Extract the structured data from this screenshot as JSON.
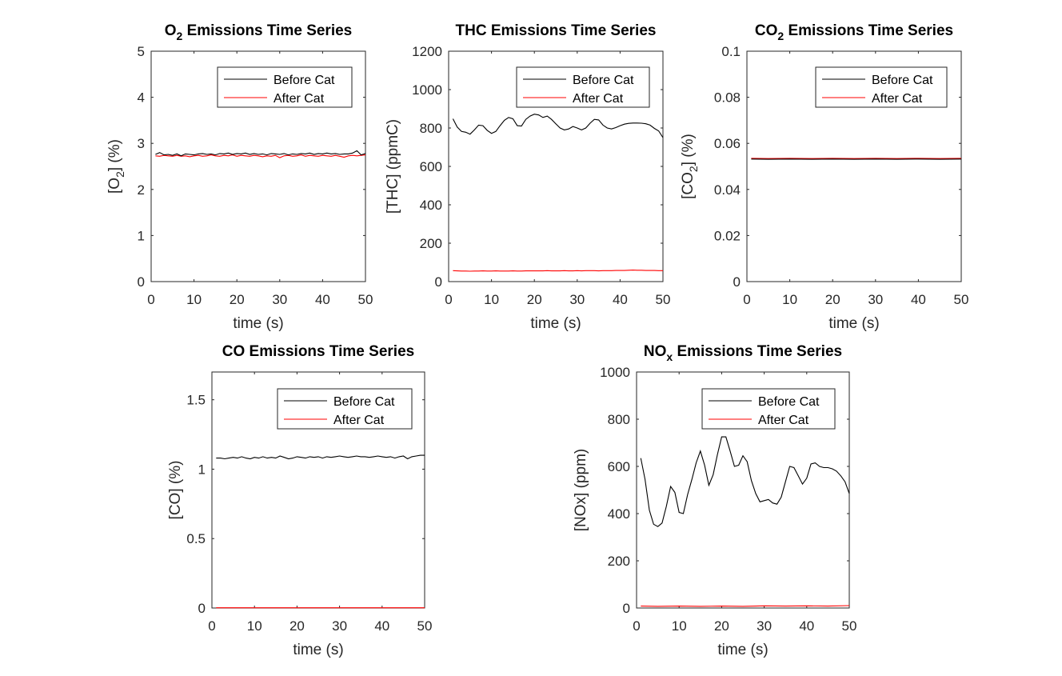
{
  "colors": {
    "before": "#000000",
    "after": "#ff0000",
    "axis": "#262626"
  },
  "chart_data": [
    {
      "type": "line",
      "title_main": "O",
      "title_sub": "2",
      "title_rest": " Emissions Time Series",
      "xlabel": "time (s)",
      "ylabel_pre": "[O",
      "ylabel_sub": "2",
      "ylabel_post": "] (%)",
      "xlim": [
        0,
        50
      ],
      "ylim": [
        0,
        5
      ],
      "xticks": [
        "0",
        "10",
        "20",
        "30",
        "40",
        "50"
      ],
      "yticks": [
        "0",
        "1",
        "2",
        "3",
        "4",
        "5"
      ],
      "legend": [
        "Before Cat",
        "After Cat"
      ],
      "legend_position": "top-right",
      "series": [
        {
          "name": "Before Cat",
          "x": [
            1,
            2,
            3,
            4,
            5,
            6,
            7,
            8,
            9,
            10,
            11,
            12,
            13,
            14,
            15,
            16,
            17,
            18,
            19,
            20,
            21,
            22,
            23,
            24,
            25,
            26,
            27,
            28,
            29,
            30,
            31,
            32,
            33,
            34,
            35,
            36,
            37,
            38,
            39,
            40,
            41,
            42,
            43,
            44,
            45,
            46,
            47,
            48,
            49,
            50
          ],
          "y": [
            2.76,
            2.8,
            2.75,
            2.76,
            2.74,
            2.77,
            2.73,
            2.77,
            2.76,
            2.75,
            2.77,
            2.78,
            2.76,
            2.77,
            2.75,
            2.78,
            2.77,
            2.79,
            2.76,
            2.78,
            2.77,
            2.79,
            2.76,
            2.78,
            2.76,
            2.77,
            2.75,
            2.78,
            2.77,
            2.76,
            2.78,
            2.75,
            2.77,
            2.76,
            2.78,
            2.77,
            2.79,
            2.76,
            2.78,
            2.77,
            2.79,
            2.77,
            2.78,
            2.76,
            2.77,
            2.77,
            2.79,
            2.84,
            2.75,
            2.78
          ]
        },
        {
          "name": "After Cat",
          "x": [
            1,
            2,
            3,
            4,
            5,
            6,
            7,
            8,
            9,
            10,
            11,
            12,
            13,
            14,
            15,
            16,
            17,
            18,
            19,
            20,
            21,
            22,
            23,
            24,
            25,
            26,
            27,
            28,
            29,
            30,
            31,
            32,
            33,
            34,
            35,
            36,
            37,
            38,
            39,
            40,
            41,
            42,
            43,
            44,
            45,
            46,
            47,
            48,
            49,
            50
          ],
          "y": [
            2.73,
            2.72,
            2.74,
            2.73,
            2.72,
            2.74,
            2.72,
            2.73,
            2.71,
            2.73,
            2.74,
            2.72,
            2.73,
            2.75,
            2.73,
            2.72,
            2.74,
            2.73,
            2.75,
            2.72,
            2.74,
            2.73,
            2.72,
            2.74,
            2.73,
            2.71,
            2.73,
            2.72,
            2.74,
            2.69,
            2.73,
            2.74,
            2.72,
            2.73,
            2.75,
            2.72,
            2.74,
            2.73,
            2.72,
            2.74,
            2.73,
            2.72,
            2.74,
            2.72,
            2.7,
            2.73,
            2.74,
            2.73,
            2.74,
            2.75
          ]
        }
      ]
    },
    {
      "type": "line",
      "title_main": "THC Emissions Time Series",
      "title_sub": "",
      "title_rest": "",
      "xlabel": "time (s)",
      "ylabel_pre": "[THC] (ppmC)",
      "ylabel_sub": "",
      "ylabel_post": "",
      "xlim": [
        0,
        50
      ],
      "ylim": [
        0,
        1200
      ],
      "xticks": [
        "0",
        "10",
        "20",
        "30",
        "40",
        "50"
      ],
      "yticks": [
        "0",
        "200",
        "400",
        "600",
        "800",
        "1000",
        "1200"
      ],
      "legend": [
        "Before Cat",
        "After Cat"
      ],
      "legend_position": "top-right",
      "series": [
        {
          "name": "Before Cat",
          "x": [
            1,
            2,
            3,
            4,
            5,
            6,
            7,
            8,
            9,
            10,
            11,
            12,
            13,
            14,
            15,
            16,
            17,
            18,
            19,
            20,
            21,
            22,
            23,
            24,
            25,
            26,
            27,
            28,
            29,
            30,
            31,
            32,
            33,
            34,
            35,
            36,
            37,
            38,
            39,
            40,
            41,
            42,
            43,
            44,
            45,
            46,
            47,
            48,
            49,
            50
          ],
          "y": [
            848,
            805,
            782,
            778,
            768,
            790,
            815,
            812,
            788,
            772,
            782,
            812,
            840,
            855,
            848,
            812,
            810,
            845,
            862,
            872,
            868,
            855,
            862,
            845,
            822,
            800,
            790,
            795,
            808,
            800,
            790,
            800,
            825,
            845,
            842,
            815,
            800,
            795,
            802,
            812,
            820,
            824,
            826,
            826,
            825,
            822,
            815,
            798,
            785,
            750
          ]
        },
        {
          "name": "After Cat",
          "x": [
            1,
            2,
            3,
            4,
            5,
            6,
            7,
            8,
            9,
            10,
            11,
            12,
            13,
            14,
            15,
            16,
            17,
            18,
            19,
            20,
            21,
            22,
            23,
            24,
            25,
            26,
            27,
            28,
            29,
            30,
            31,
            32,
            33,
            34,
            35,
            36,
            37,
            38,
            39,
            40,
            41,
            42,
            43,
            44,
            45,
            46,
            47,
            48,
            49,
            50
          ],
          "y": [
            57,
            56,
            55,
            55,
            54,
            55,
            55,
            56,
            55,
            55,
            56,
            55,
            55,
            55,
            56,
            55,
            55,
            56,
            56,
            56,
            56,
            56,
            57,
            56,
            56,
            56,
            57,
            56,
            56,
            57,
            56,
            57,
            57,
            57,
            56,
            57,
            57,
            57,
            58,
            58,
            58,
            59,
            60,
            59,
            59,
            58,
            58,
            58,
            57,
            57
          ]
        }
      ]
    },
    {
      "type": "line",
      "title_main": "CO",
      "title_sub": "2",
      "title_rest": " Emissions Time Series",
      "xlabel": "time (s)",
      "ylabel_pre": "[CO",
      "ylabel_sub": "2",
      "ylabel_post": "] (%)",
      "xlim": [
        0,
        50
      ],
      "ylim": [
        0,
        0.1
      ],
      "xticks": [
        "0",
        "10",
        "20",
        "30",
        "40",
        "50"
      ],
      "yticks": [
        "0",
        "0.02",
        "0.04",
        "0.06",
        "0.08",
        "0.1"
      ],
      "legend": [
        "Before Cat",
        "After Cat"
      ],
      "legend_position": "top-right",
      "series": [
        {
          "name": "Before Cat",
          "x": [
            1,
            5,
            10,
            15,
            20,
            25,
            30,
            35,
            40,
            45,
            50
          ],
          "y": [
            0.0532,
            0.0531,
            0.0532,
            0.0531,
            0.0532,
            0.0531,
            0.0532,
            0.0531,
            0.0532,
            0.0531,
            0.0532
          ]
        },
        {
          "name": "After Cat",
          "x": [
            1,
            5,
            10,
            15,
            20,
            25,
            30,
            35,
            40,
            45,
            50
          ],
          "y": [
            0.0535,
            0.0534,
            0.0535,
            0.0534,
            0.0535,
            0.0534,
            0.0535,
            0.0534,
            0.0535,
            0.0534,
            0.0535
          ]
        }
      ]
    },
    {
      "type": "line",
      "title_main": "CO Emissions Time Series",
      "title_sub": "",
      "title_rest": "",
      "xlabel": "time (s)",
      "ylabel_pre": "[CO] (%)",
      "ylabel_sub": "",
      "ylabel_post": "",
      "xlim": [
        0,
        50
      ],
      "ylim": [
        0,
        1.7
      ],
      "xticks": [
        "0",
        "10",
        "20",
        "30",
        "40",
        "50"
      ],
      "yticks": [
        "0",
        "0.5",
        "1",
        "1.5"
      ],
      "ytick_values": [
        0,
        0.5,
        1,
        1.5
      ],
      "legend": [
        "Before Cat",
        "After Cat"
      ],
      "legend_position": "top-right",
      "series": [
        {
          "name": "Before Cat",
          "x": [
            1,
            2,
            3,
            4,
            5,
            6,
            7,
            8,
            9,
            10,
            11,
            12,
            13,
            14,
            15,
            16,
            17,
            18,
            19,
            20,
            21,
            22,
            23,
            24,
            25,
            26,
            27,
            28,
            29,
            30,
            31,
            32,
            33,
            34,
            35,
            36,
            37,
            38,
            39,
            40,
            41,
            42,
            43,
            44,
            45,
            46,
            47,
            48,
            49,
            50
          ],
          "y": [
            1.08,
            1.08,
            1.075,
            1.08,
            1.085,
            1.08,
            1.09,
            1.08,
            1.075,
            1.085,
            1.08,
            1.09,
            1.08,
            1.085,
            1.08,
            1.095,
            1.085,
            1.075,
            1.08,
            1.09,
            1.085,
            1.08,
            1.09,
            1.085,
            1.09,
            1.08,
            1.09,
            1.085,
            1.09,
            1.095,
            1.09,
            1.085,
            1.09,
            1.095,
            1.09,
            1.09,
            1.085,
            1.09,
            1.095,
            1.09,
            1.085,
            1.09,
            1.08,
            1.09,
            1.095,
            1.075,
            1.09,
            1.095,
            1.1,
            1.1
          ]
        },
        {
          "name": "After Cat",
          "x": [
            1,
            10,
            20,
            30,
            40,
            50
          ],
          "y": [
            0.002,
            0.002,
            0.002,
            0.002,
            0.002,
            0.002
          ]
        }
      ]
    },
    {
      "type": "line",
      "title_main": "NO",
      "title_sub": "x",
      "title_rest": " Emissions Time Series",
      "xlabel": "time (s)",
      "ylabel_pre": "[NOx] (ppm)",
      "ylabel_sub": "",
      "ylabel_post": "",
      "xlim": [
        0,
        50
      ],
      "ylim": [
        0,
        1000
      ],
      "xticks": [
        "0",
        "10",
        "20",
        "30",
        "40",
        "50"
      ],
      "yticks": [
        "0",
        "200",
        "400",
        "600",
        "800",
        "1000"
      ],
      "legend": [
        "Before Cat",
        "After Cat"
      ],
      "legend_position": "top-right",
      "series": [
        {
          "name": "Before Cat",
          "x": [
            1,
            2,
            3,
            4,
            5,
            6,
            7,
            8,
            9,
            10,
            11,
            12,
            13,
            14,
            15,
            16,
            17,
            18,
            19,
            20,
            21,
            22,
            23,
            24,
            25,
            26,
            27,
            28,
            29,
            30,
            31,
            32,
            33,
            34,
            35,
            36,
            37,
            38,
            39,
            40,
            41,
            42,
            43,
            44,
            45,
            46,
            47,
            48,
            49,
            50
          ],
          "y": [
            635,
            545,
            415,
            355,
            345,
            360,
            430,
            515,
            490,
            405,
            400,
            480,
            545,
            615,
            665,
            605,
            520,
            565,
            650,
            725,
            725,
            665,
            600,
            605,
            645,
            620,
            540,
            485,
            450,
            455,
            460,
            445,
            440,
            470,
            535,
            600,
            595,
            560,
            525,
            550,
            610,
            615,
            600,
            595,
            595,
            590,
            580,
            560,
            535,
            485
          ]
        },
        {
          "name": "After Cat",
          "x": [
            1,
            5,
            10,
            15,
            20,
            25,
            30,
            35,
            40,
            45,
            50
          ],
          "y": [
            8,
            7,
            8,
            7,
            8,
            7,
            9,
            8,
            9,
            8,
            10
          ]
        }
      ]
    }
  ]
}
